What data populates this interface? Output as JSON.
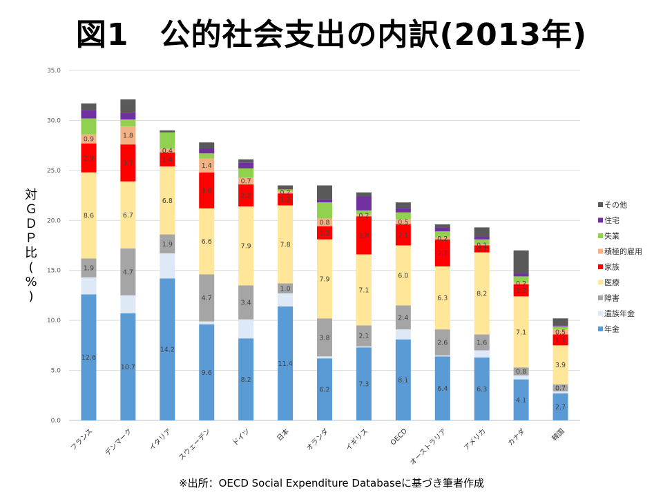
{
  "title": "図1　公的社会支出の内訳(2013年)",
  "source_note": "※出所：OECD Social Expenditure Databaseに基づき筆者作成",
  "chart_data": {
    "type": "bar",
    "stacked": true,
    "title": "図1　公的社会支出の内訳(2013年)",
    "xlabel": "",
    "ylabel": "対ＧＤＰ比(%)",
    "ylabel_chars": [
      "対",
      "Ｇ",
      "Ｄ",
      "Ｐ",
      "比",
      "(",
      "%",
      ")"
    ],
    "ylim": [
      0,
      35
    ],
    "yticks": [
      "0.0",
      "5.0",
      "10.0",
      "15.0",
      "20.0",
      "25.0",
      "30.0",
      "35.0"
    ],
    "grid": true,
    "legend_position": "right",
    "categories": [
      "フランス",
      "デンマーク",
      "イタリア",
      "スウェーデン",
      "ドイツ",
      "日本",
      "オランダ",
      "イギリス",
      "OECD",
      "オーストラリア",
      "アメリカ",
      "カナダ",
      "韓国"
    ],
    "series": [
      {
        "name": "年金",
        "color": "#5b9bd5",
        "values": [
          12.6,
          10.7,
          14.2,
          9.6,
          8.2,
          11.4,
          6.2,
          7.3,
          8.1,
          6.4,
          6.3,
          4.1,
          2.7
        ],
        "labels": [
          "12.6",
          "10.7",
          "14.2",
          "9.6",
          "8.2",
          "11.4",
          "6.2",
          "7.3",
          "8.1",
          "6.4",
          "6.3",
          "4.1",
          "2.7"
        ]
      },
      {
        "name": "遺族年金",
        "color": "#dde9f6",
        "values": [
          1.7,
          1.8,
          2.5,
          0.3,
          1.9,
          1.3,
          0.2,
          0.1,
          1.0,
          0.1,
          0.7,
          0.4,
          0.2
        ],
        "labels": [
          "",
          "",
          "",
          "",
          "",
          "",
          "",
          "",
          "",
          "",
          "",
          "",
          ""
        ]
      },
      {
        "name": "障害",
        "color": "#a5a5a5",
        "values": [
          1.9,
          4.7,
          1.9,
          4.7,
          3.4,
          1.0,
          3.8,
          2.1,
          2.4,
          2.6,
          1.6,
          0.8,
          0.7
        ],
        "labels": [
          "1.9",
          "4.7",
          "1.9",
          "4.7",
          "3.4",
          "1.0",
          "3.8",
          "2.1",
          "2.4",
          "2.6",
          "1.6",
          "0.8",
          "0.7"
        ]
      },
      {
        "name": "医療",
        "color": "#ffe699",
        "values": [
          8.6,
          6.7,
          6.8,
          6.6,
          7.9,
          7.8,
          7.9,
          7.1,
          6.0,
          6.3,
          8.2,
          7.1,
          3.9
        ],
        "labels": [
          "8.6",
          "6.7",
          "6.8",
          "6.6",
          "7.9",
          "7.8",
          "7.9",
          "7.1",
          "6.0",
          "6.3",
          "8.2",
          "7.1",
          "3.9"
        ]
      },
      {
        "name": "家族",
        "color": "#ff0000",
        "values": [
          2.9,
          3.7,
          1.4,
          3.6,
          2.2,
          1.2,
          1.3,
          3.8,
          2.1,
          2.7,
          0.7,
          1.2,
          1.1
        ],
        "labels": [
          "2.9",
          "3.7",
          "1.4",
          "3.6",
          "2.2",
          "1.2",
          "1.3",
          "3.8",
          "2.1",
          "2.7",
          "0.7",
          "1.2",
          "1.1"
        ]
      },
      {
        "name": "積極的雇用",
        "color": "#f4b183",
        "values": [
          0.9,
          1.8,
          0.4,
          1.4,
          0.7,
          0.2,
          0.8,
          0.2,
          0.5,
          0.2,
          0.1,
          0.2,
          0.5
        ],
        "labels": [
          "0.9",
          "1.8",
          "0.4",
          "1.4",
          "0.7",
          "0.2",
          "0.8",
          "0.2",
          "0.5",
          "0.2",
          "0.1",
          "0.2",
          "0.5"
        ]
      },
      {
        "name": "失業",
        "color": "#92d050",
        "values": [
          1.6,
          0.7,
          1.6,
          0.5,
          0.9,
          0.2,
          1.6,
          0.4,
          0.7,
          0.6,
          0.5,
          0.6,
          0.3
        ],
        "labels": [
          "",
          "",
          "",
          "",
          "",
          "",
          "",
          "",
          "",
          "",
          "",
          "",
          ""
        ]
      },
      {
        "name": "住宅",
        "color": "#7030a0",
        "values": [
          0.8,
          0.7,
          0.0,
          0.5,
          0.6,
          0.1,
          0.3,
          1.4,
          0.4,
          0.4,
          0.3,
          0.3,
          0.1
        ],
        "labels": [
          "",
          "",
          "",
          "",
          "",
          "",
          "",
          "",
          "",
          "",
          "",
          "",
          ""
        ]
      },
      {
        "name": "その他",
        "color": "#595959",
        "values": [
          0.7,
          1.3,
          0.2,
          0.6,
          0.3,
          0.3,
          1.4,
          0.4,
          0.6,
          0.3,
          0.9,
          2.3,
          0.7
        ],
        "labels": [
          "",
          "",
          "",
          "",
          "",
          "",
          "",
          "",
          "",
          "",
          "",
          "",
          ""
        ]
      }
    ]
  }
}
